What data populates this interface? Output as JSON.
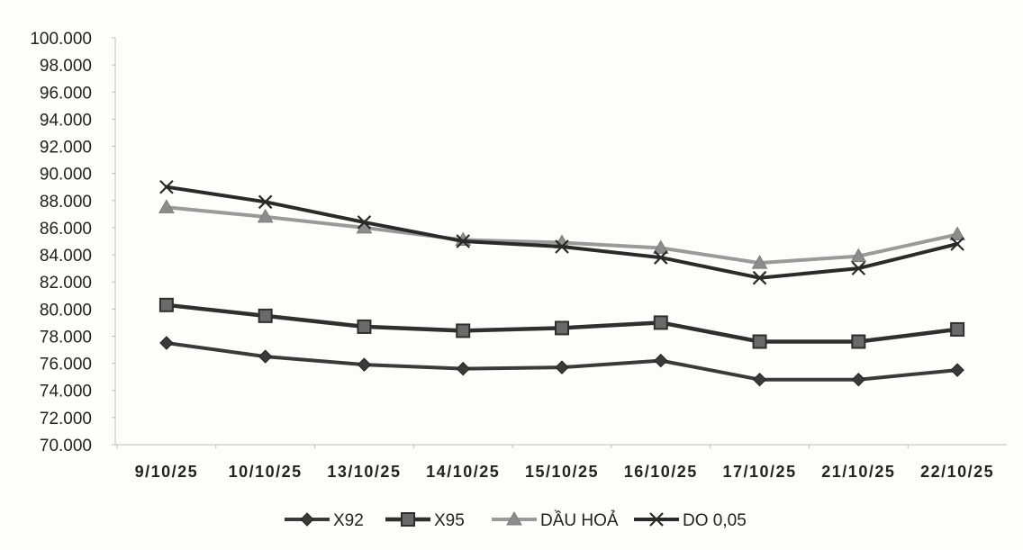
{
  "chart_data": {
    "type": "line",
    "title": "",
    "xlabel": "",
    "ylabel": "",
    "categories": [
      "9/10/25",
      "10/10/25",
      "13/10/25",
      "14/10/25",
      "15/10/25",
      "16/10/25",
      "17/10/25",
      "21/10/25",
      "22/10/25"
    ],
    "ylim": [
      70000,
      100000
    ],
    "y_ticks": [
      70000,
      72000,
      74000,
      76000,
      78000,
      80000,
      82000,
      84000,
      86000,
      88000,
      90000,
      92000,
      94000,
      96000,
      98000,
      100000
    ],
    "y_tick_labels": [
      "70.000",
      "72.000",
      "74.000",
      "76.000",
      "78.000",
      "80.000",
      "82.000",
      "84.000",
      "86.000",
      "88.000",
      "90.000",
      "92.000",
      "94.000",
      "96.000",
      "98.000",
      "100.000"
    ],
    "grid": false,
    "legend_position": "bottom",
    "series": [
      {
        "name": "X92",
        "marker": "diamond",
        "color": "#3a3a3a",
        "values": [
          77500,
          76500,
          75900,
          75600,
          75700,
          76200,
          74800,
          74800,
          75500
        ]
      },
      {
        "name": "X95",
        "marker": "square",
        "color": "#2f2f2f",
        "values": [
          80300,
          79500,
          78700,
          78400,
          78600,
          79000,
          77600,
          77600,
          78500
        ]
      },
      {
        "name": "DẦU HOẢ",
        "marker": "triangle",
        "color": "#9a9a9a",
        "values": [
          87500,
          86800,
          86000,
          85100,
          84900,
          84500,
          83400,
          83900,
          85500
        ]
      },
      {
        "name": "DO 0,05",
        "marker": "x",
        "color": "#2a2a2a",
        "values": [
          89000,
          87900,
          86400,
          85000,
          84600,
          83800,
          82300,
          83000,
          84800
        ]
      }
    ]
  }
}
